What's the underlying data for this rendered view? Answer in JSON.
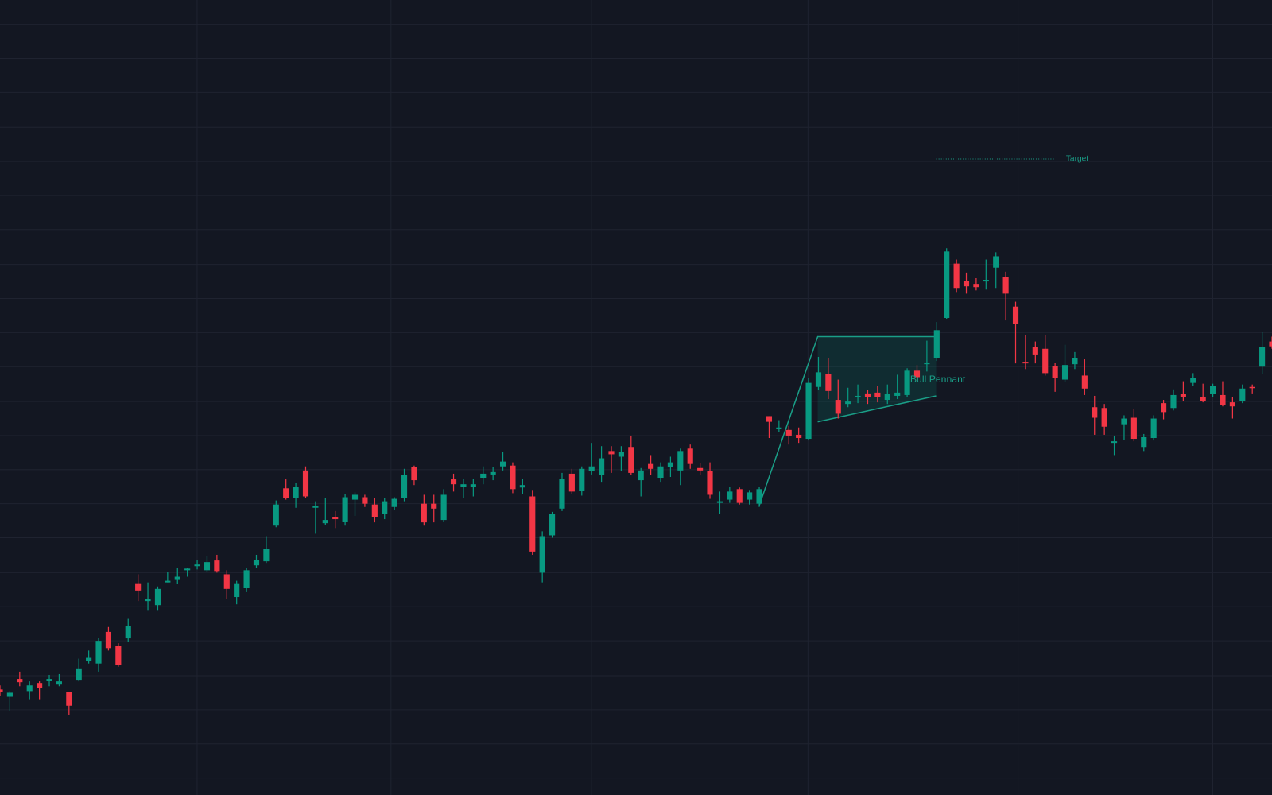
{
  "chart_data": {
    "type": "candlestick",
    "open": [
      130,
      121,
      143,
      128,
      138,
      141,
      136,
      127,
      142,
      165,
      162,
      201,
      184,
      193,
      261,
      239,
      234,
      262,
      266,
      277,
      282,
      277,
      289,
      272,
      244,
      255,
      283,
      288,
      332,
      378,
      366,
      400,
      354,
      335,
      343,
      337,
      364,
      367,
      358,
      346,
      355,
      366,
      404,
      359,
      359,
      339,
      389,
      380,
      380,
      391,
      395,
      405,
      406,
      379,
      368,
      274,
      320,
      353,
      396,
      375,
      399,
      394,
      424,
      417,
      429,
      388,
      408,
      391,
      404,
      400,
      427,
      403,
      399,
      360,
      364,
      377,
      364,
      359,
      467,
      451,
      450,
      444,
      439,
      503,
      519,
      487,
      482,
      490,
      495,
      496,
      487,
      492,
      493,
      523,
      531,
      539,
      588,
      655,
      634,
      630,
      633,
      650,
      638,
      602,
      534,
      552,
      550,
      529,
      512,
      531,
      517,
      478,
      477,
      434,
      457,
      465,
      429,
      440,
      483,
      477,
      494,
      508,
      491,
      494,
      493,
      484,
      486,
      503,
      528,
      559
    ],
    "high": [
      135,
      128,
      152,
      140,
      140,
      148,
      149,
      127,
      168,
      178,
      194,
      207,
      187,
      218,
      272,
      262,
      257,
      275,
      280,
      280,
      290,
      294,
      296,
      277,
      264,
      280,
      296,
      319,
      363,
      389,
      385,
      405,
      362,
      366,
      350,
      371,
      373,
      370,
      366,
      366,
      367,
      402,
      406,
      370,
      370,
      377,
      396,
      390,
      390,
      405,
      404,
      423,
      410,
      390,
      376,
      325,
      349,
      397,
      402,
      405,
      434,
      430,
      430,
      430,
      443,
      403,
      419,
      410,
      417,
      427,
      432,
      409,
      410,
      374,
      380,
      379,
      376,
      380,
      467,
      462,
      455,
      453,
      514,
      540,
      539,
      512,
      502,
      506,
      499,
      504,
      506,
      518,
      526,
      530,
      560,
      583,
      674,
      660,
      644,
      637,
      660,
      669,
      645,
      608,
      567,
      559,
      567,
      533,
      555,
      546,
      537,
      492,
      482,
      443,
      468,
      476,
      445,
      468,
      487,
      500,
      510,
      520,
      507,
      507,
      510,
      490,
      506,
      506,
      571,
      565
    ],
    "low": [
      122,
      104,
      134,
      118,
      118,
      134,
      134,
      99,
      140,
      162,
      152,
      178,
      158,
      189,
      239,
      228,
      228,
      262,
      260,
      269,
      278,
      275,
      274,
      242,
      235,
      250,
      280,
      286,
      330,
      364,
      354,
      366,
      322,
      333,
      329,
      332,
      344,
      355,
      336,
      340,
      351,
      362,
      382,
      332,
      336,
      337,
      374,
      366,
      368,
      383,
      388,
      400,
      372,
      371,
      296,
      262,
      317,
      350,
      371,
      369,
      395,
      386,
      397,
      399,
      394,
      368,
      394,
      386,
      392,
      382,
      402,
      394,
      365,
      346,
      360,
      358,
      358,
      355,
      440,
      447,
      432,
      434,
      437,
      499,
      488,
      464,
      478,
      483,
      482,
      484,
      482,
      488,
      490,
      510,
      522,
      535,
      587,
      620,
      618,
      622,
      623,
      625,
      585,
      532,
      525,
      532,
      517,
      497,
      509,
      525,
      493,
      444,
      444,
      419,
      438,
      436,
      424,
      437,
      463,
      474,
      486,
      504,
      484,
      490,
      479,
      464,
      483,
      495,
      519,
      550
    ],
    "close": [
      127,
      126,
      139,
      135,
      132,
      143,
      140,
      110,
      156,
      169,
      190,
      181,
      160,
      208,
      252,
      242,
      254,
      264,
      269,
      279,
      284,
      287,
      276,
      254,
      261,
      277,
      290,
      303,
      358,
      366,
      380,
      368,
      356,
      339,
      340,
      367,
      370,
      359,
      343,
      362,
      365,
      394,
      388,
      336,
      353,
      370,
      383,
      383,
      383,
      396,
      398,
      411,
      377,
      382,
      300,
      319,
      346,
      390,
      374,
      402,
      405,
      415,
      420,
      423,
      397,
      400,
      402,
      405,
      410,
      424,
      408,
      400,
      370,
      362,
      374,
      360,
      373,
      377,
      460,
      453,
      443,
      440,
      508,
      521,
      498,
      470,
      485,
      492,
      491,
      490,
      494,
      496,
      523,
      515,
      533,
      573,
      670,
      625,
      627,
      626,
      635,
      664,
      618,
      581,
      532,
      543,
      520,
      514,
      530,
      539,
      501,
      465,
      454,
      436,
      464,
      439,
      441,
      464,
      472,
      493,
      491,
      514,
      486,
      504,
      481,
      479,
      501,
      502,
      552,
      553
    ],
    "ylim": [
      0,
      980
    ],
    "up_color": "#089981",
    "down_color": "#f23645",
    "pattern_label": "Bull Pennant",
    "target_label": "Target"
  }
}
